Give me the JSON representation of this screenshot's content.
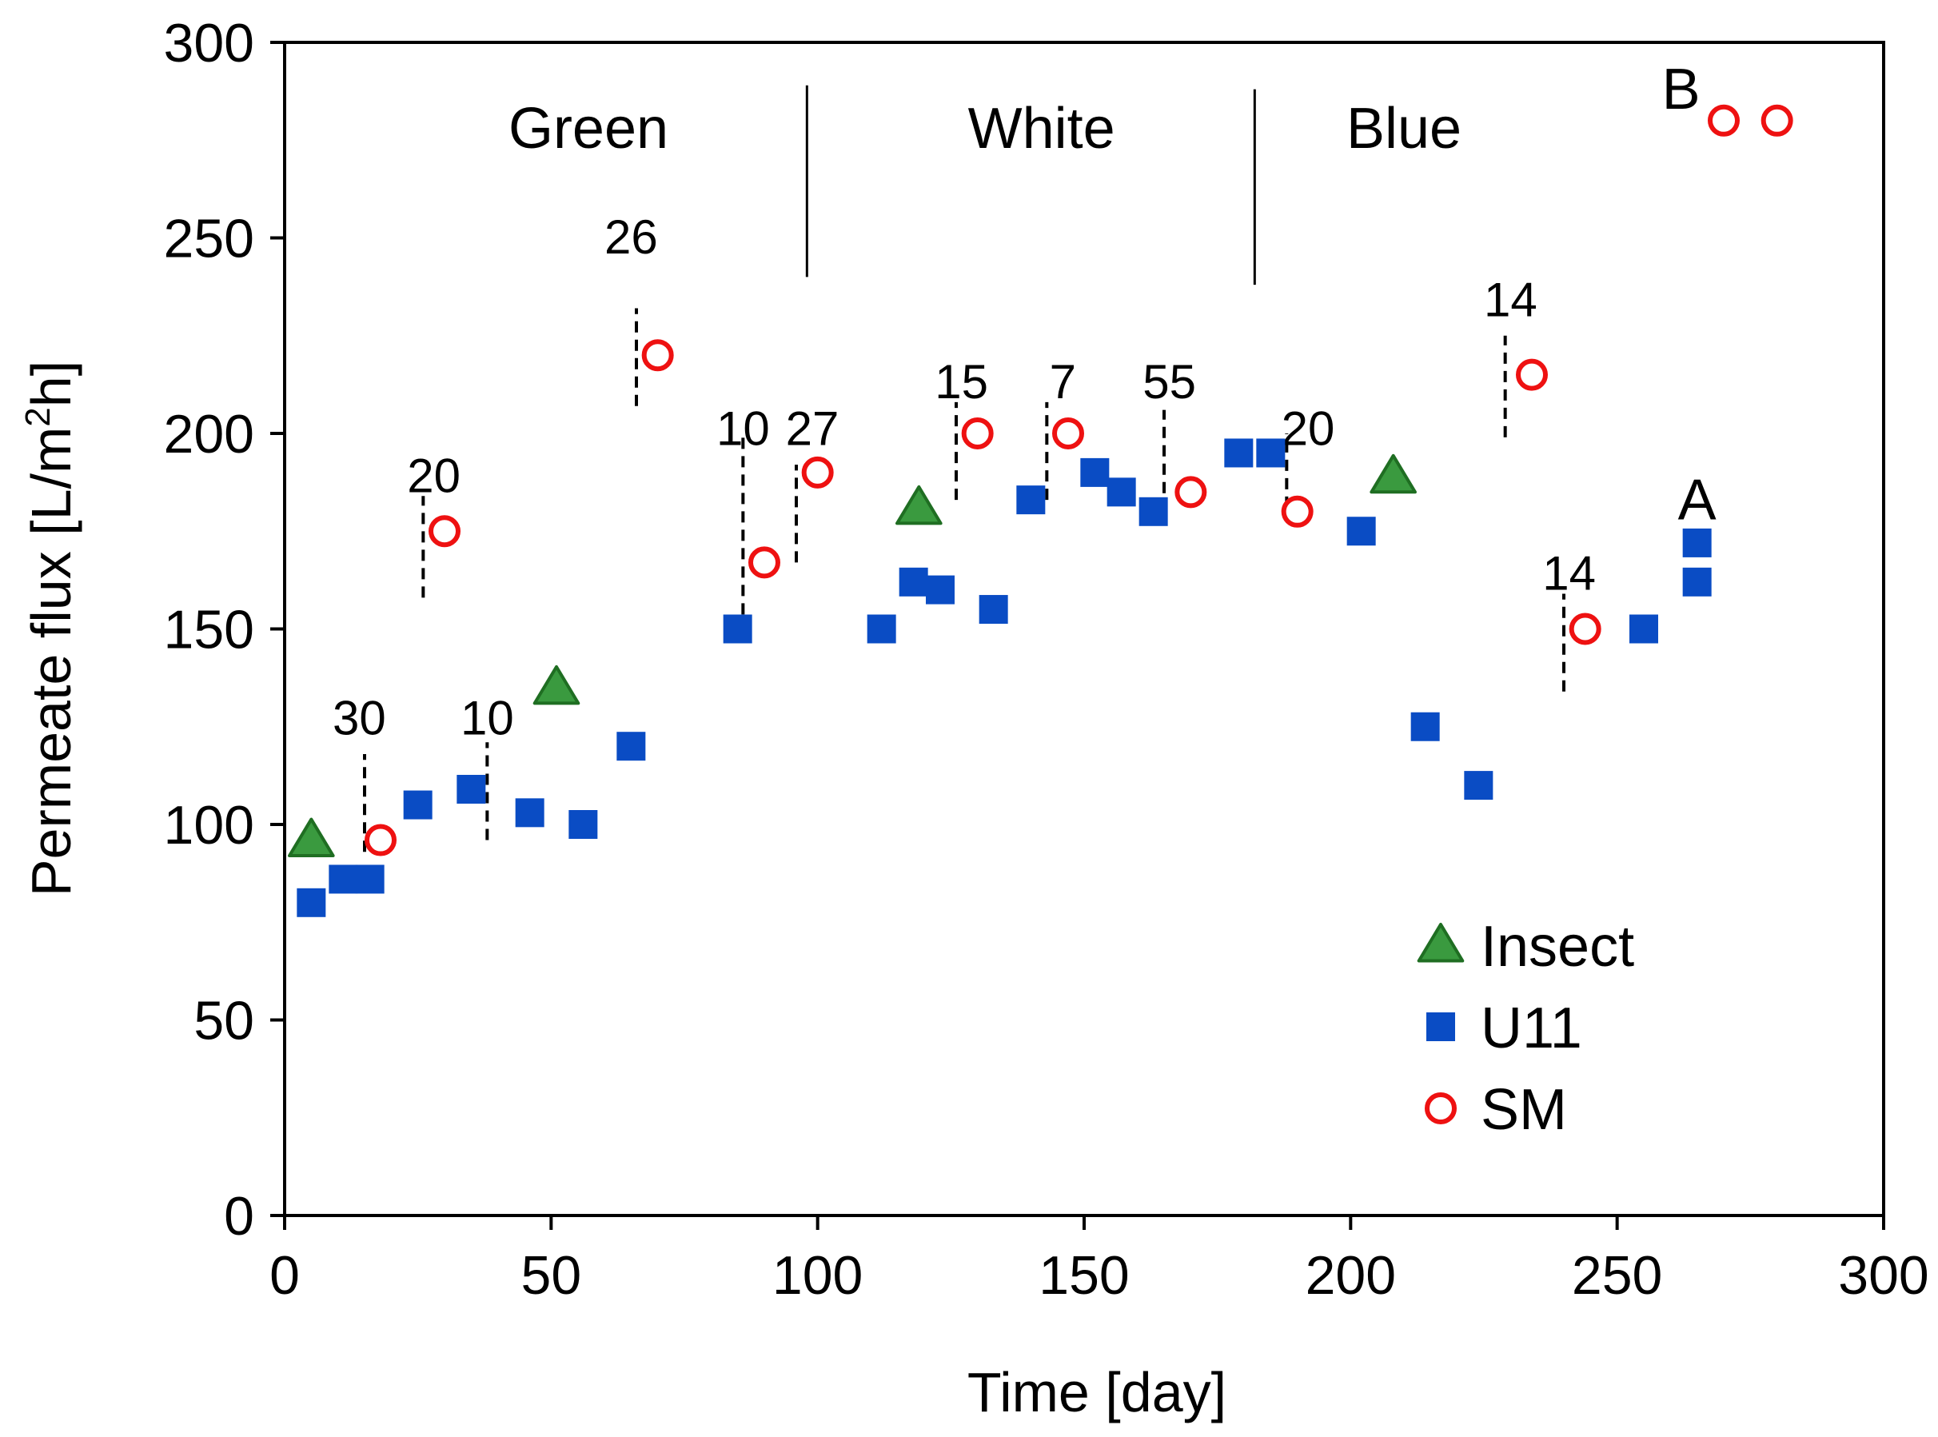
{
  "chart_data": {
    "type": "scatter",
    "title": "",
    "xlabel": "Time [day]",
    "ylabel_parts": [
      "Permeate flux [L/m",
      "2",
      "h]"
    ],
    "xlim": [
      0,
      300
    ],
    "ylim": [
      0,
      300
    ],
    "xticks": [
      0,
      50,
      100,
      150,
      200,
      250,
      300
    ],
    "yticks": [
      0,
      50,
      100,
      150,
      200,
      250,
      300
    ],
    "grid": false,
    "legend_position": "bottom-right",
    "colors": {
      "insect_fill": "#3a9a3f",
      "insect_edge": "#1f6e22",
      "u11": "#0a4cc4",
      "sm": "#ee1111"
    },
    "series": [
      {
        "name": "Insect",
        "marker": "triangle",
        "points": [
          [
            5,
            96
          ],
          [
            51,
            135
          ],
          [
            119,
            181
          ],
          [
            208,
            189
          ]
        ]
      },
      {
        "name": "U11",
        "marker": "square",
        "points": [
          [
            5,
            80
          ],
          [
            11,
            86
          ],
          [
            16,
            86
          ],
          [
            25,
            105
          ],
          [
            35,
            109
          ],
          [
            46,
            103
          ],
          [
            56,
            100
          ],
          [
            65,
            120
          ],
          [
            85,
            150
          ],
          [
            112,
            150
          ],
          [
            118,
            162
          ],
          [
            123,
            160
          ],
          [
            133,
            155
          ],
          [
            140,
            183
          ],
          [
            152,
            190
          ],
          [
            157,
            185
          ],
          [
            163,
            180
          ],
          [
            179,
            195
          ],
          [
            185,
            195
          ],
          [
            202,
            175
          ],
          [
            214,
            125
          ],
          [
            224,
            110
          ],
          [
            255,
            150
          ],
          [
            265,
            162
          ],
          [
            265,
            172
          ]
        ]
      },
      {
        "name": "SM",
        "marker": "circle",
        "points": [
          [
            18,
            96
          ],
          [
            30,
            175
          ],
          [
            70,
            220
          ],
          [
            90,
            167
          ],
          [
            100,
            190
          ],
          [
            130,
            200
          ],
          [
            147,
            200
          ],
          [
            170,
            185
          ],
          [
            190,
            180
          ],
          [
            234,
            215
          ],
          [
            244,
            150
          ],
          [
            270,
            280
          ],
          [
            280,
            280
          ]
        ]
      }
    ],
    "phase_dividers": [
      {
        "x": 98,
        "y_from": 240,
        "y_to": 289
      },
      {
        "x": 182,
        "y_from": 238,
        "y_to": 288
      }
    ],
    "phase_labels": [
      {
        "text": "Green",
        "x": 57,
        "y": 273
      },
      {
        "text": "White",
        "x": 142,
        "y": 273
      },
      {
        "text": "Blue",
        "x": 210,
        "y": 273
      }
    ],
    "annotations": [
      {
        "text": "30",
        "x": 14,
        "y_text": 123,
        "line_x": 15,
        "line_from": 93,
        "line_to": 118
      },
      {
        "text": "10",
        "x": 38,
        "y_text": 123,
        "line_x": 38,
        "line_from": 96,
        "line_to": 121
      },
      {
        "text": "20",
        "x": 28,
        "y_text": 185,
        "line_x": 26,
        "line_from": 158,
        "line_to": 184
      },
      {
        "text": "26",
        "x": 65,
        "y_text": 246,
        "line_x": 66,
        "line_from": 207,
        "line_to": 232
      },
      {
        "text": "10",
        "x": 86,
        "y_text": 197,
        "line_x": 86,
        "line_from": 149,
        "line_to": 199
      },
      {
        "text": "27",
        "x": 99,
        "y_text": 197,
        "line_x": 96,
        "line_from": 167,
        "line_to": 192
      },
      {
        "text": "15",
        "x": 127,
        "y_text": 209,
        "line_x": 126,
        "line_from": 183,
        "line_to": 208
      },
      {
        "text": "7",
        "x": 146,
        "y_text": 209,
        "line_x": 143,
        "line_from": 183,
        "line_to": 208
      },
      {
        "text": "55",
        "x": 166,
        "y_text": 209,
        "line_x": 165,
        "line_from": 180,
        "line_to": 206
      },
      {
        "text": "20",
        "x": 192,
        "y_text": 197,
        "line_x": 188,
        "line_from": 181,
        "line_to": 200
      },
      {
        "text": "14",
        "x": 230,
        "y_text": 230,
        "line_x": 229,
        "line_from": 199,
        "line_to": 225
      },
      {
        "text": "14",
        "x": 241,
        "y_text": 160,
        "line_x": 240,
        "line_from": 134,
        "line_to": 159
      }
    ],
    "point_labels": [
      {
        "text": "A",
        "x": 265,
        "y": 178
      },
      {
        "text": "B",
        "x": 262,
        "y": 283
      }
    ]
  }
}
